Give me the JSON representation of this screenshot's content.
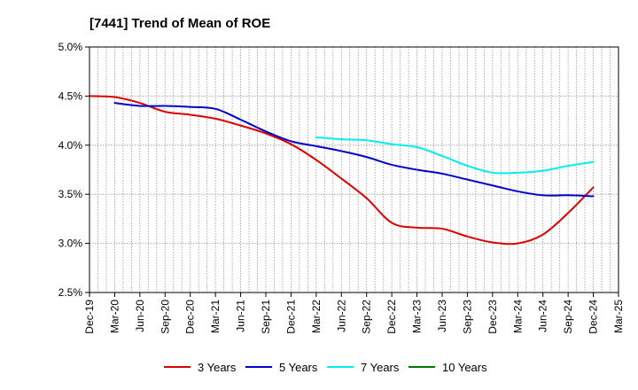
{
  "chart_data": {
    "type": "line",
    "title": "[7441]  Trend of Mean of ROE",
    "xlabel": "",
    "ylabel": "",
    "ylim": [
      2.5,
      5.0
    ],
    "yticks": [
      2.5,
      3.0,
      3.5,
      4.0,
      4.5,
      5.0
    ],
    "ytick_labels": [
      "2.5%",
      "3.0%",
      "3.5%",
      "4.0%",
      "4.5%",
      "5.0%"
    ],
    "categories": [
      "Dec-19",
      "Mar-20",
      "Jun-20",
      "Sep-20",
      "Dec-20",
      "Mar-21",
      "Jun-21",
      "Sep-21",
      "Dec-21",
      "Mar-22",
      "Jun-22",
      "Sep-22",
      "Dec-22",
      "Mar-23",
      "Jun-23",
      "Sep-23",
      "Dec-23",
      "Mar-24",
      "Jun-24",
      "Sep-24",
      "Dec-24",
      "Mar-25"
    ],
    "grid": true,
    "legend_position": "bottom",
    "series": [
      {
        "name": "3 Years",
        "color": "#dd0000",
        "values": [
          4.5,
          4.49,
          4.43,
          4.34,
          4.31,
          4.27,
          4.2,
          4.12,
          4.01,
          3.85,
          3.66,
          3.46,
          3.21,
          3.16,
          3.15,
          3.07,
          3.01,
          3.0,
          3.09,
          3.31,
          3.57,
          null
        ]
      },
      {
        "name": "5 Years",
        "color": "#0000cc",
        "values": [
          null,
          4.43,
          4.4,
          4.4,
          4.39,
          4.37,
          4.26,
          4.14,
          4.04,
          3.99,
          3.94,
          3.88,
          3.8,
          3.75,
          3.71,
          3.65,
          3.59,
          3.53,
          3.49,
          3.49,
          3.48,
          null
        ]
      },
      {
        "name": "7 Years",
        "color": "#00eeee",
        "values": [
          null,
          null,
          null,
          null,
          null,
          null,
          null,
          null,
          null,
          4.08,
          4.06,
          4.05,
          4.01,
          3.98,
          3.89,
          3.79,
          3.72,
          3.72,
          3.74,
          3.79,
          3.83,
          null
        ]
      },
      {
        "name": "10 Years",
        "color": "#007700",
        "values": [
          null,
          null,
          null,
          null,
          null,
          null,
          null,
          null,
          null,
          null,
          null,
          null,
          null,
          null,
          null,
          null,
          null,
          null,
          null,
          null,
          null,
          null
        ]
      }
    ]
  }
}
